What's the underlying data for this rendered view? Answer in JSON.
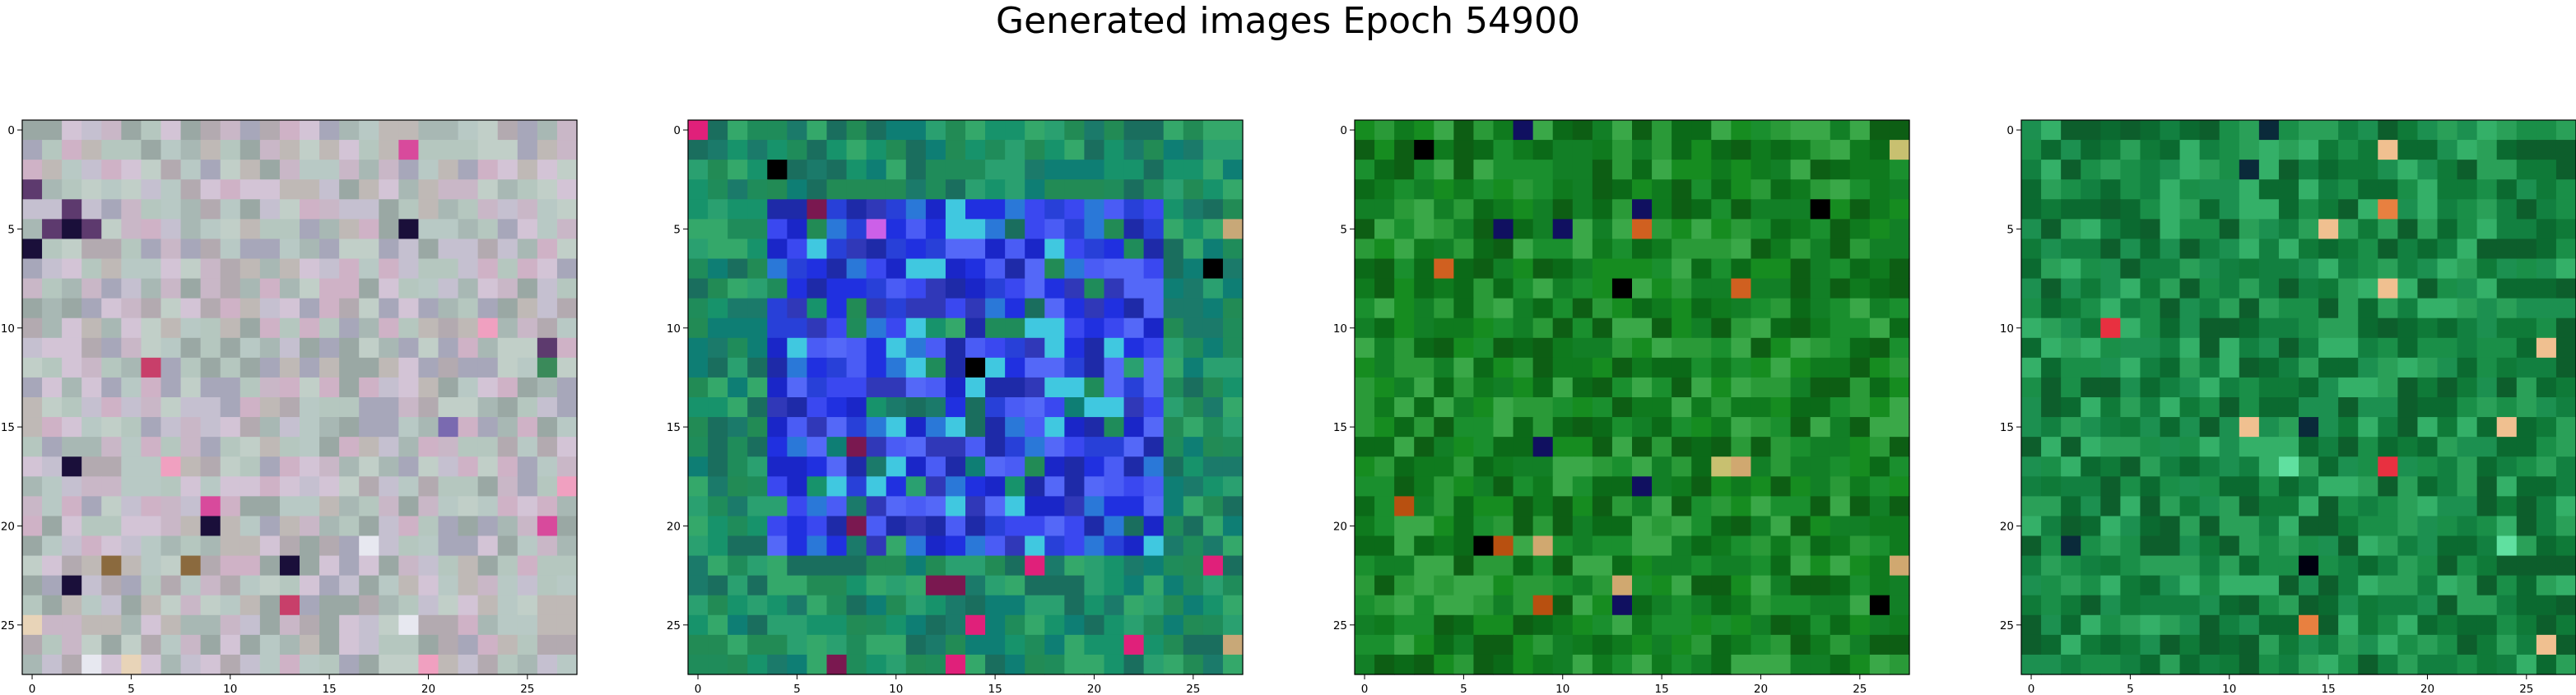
{
  "title": "Generated images Epoch 54900",
  "chart_data": [
    {
      "type": "heatmap",
      "description_colormap": "rgb",
      "grid_size": [
        28,
        28
      ],
      "xlim": [
        -0.5,
        27.5
      ],
      "ylim": [
        27.5,
        -0.5
      ],
      "xticks": [
        0,
        5,
        10,
        15,
        20,
        25
      ],
      "yticks": [
        0,
        5,
        10,
        15,
        20,
        25
      ],
      "palette": [
        "#b5c7bf",
        "#a8b8b4",
        "#c5c0d0",
        "#c9b7c7",
        "#b8c9c5",
        "#a7a7ba",
        "#cfb2c6",
        "#bfb9b6",
        "#9aa8a4",
        "#d3c4d6",
        "#b3aab0",
        "#c1cfc8"
      ],
      "accents": [
        "#1a0f3a",
        "#c83f6a",
        "#e8d4b8",
        "#8b6a3e",
        "#5d3a6e",
        "#d84a9c",
        "#3a8a5a",
        "#f0a0c0",
        "#7a6ab0",
        "#e7e8f0"
      ]
    },
    {
      "type": "heatmap",
      "description_colormap": "rgb",
      "grid_size": [
        28,
        28
      ],
      "xlim": [
        -0.5,
        27.5
      ],
      "ylim": [
        27.5,
        -0.5
      ],
      "xticks": [
        0,
        5,
        10,
        15,
        20,
        25
      ],
      "yticks": [
        0,
        5,
        10,
        15,
        20,
        25
      ],
      "palette": [
        "#1f8c5a",
        "#1b7a6a",
        "#2aa070",
        "#17936b",
        "#228b55",
        "#0e7e74",
        "#34a86a",
        "#1a6e5e"
      ],
      "center_palette": [
        "#2030e0",
        "#3a48f0",
        "#1a26c8",
        "#4a5cf5",
        "#2840d8",
        "#3038b8",
        "#5468f8",
        "#1e2aa8",
        "#2a78d8",
        "#40c8e0"
      ],
      "accents": [
        "#e0207a",
        "#000000",
        "#c8a878",
        "#7a1850",
        "#cc60e8"
      ]
    },
    {
      "type": "heatmap",
      "description_colormap": "rgb",
      "grid_size": [
        28,
        28
      ],
      "xlim": [
        -0.5,
        27.5
      ],
      "ylim": [
        27.5,
        -0.5
      ],
      "xticks": [
        0,
        5,
        10,
        15,
        20,
        25
      ],
      "yticks": [
        0,
        5,
        10,
        15,
        20,
        25
      ],
      "palette": [
        "#0f7a1e",
        "#127f26",
        "#0b6a18",
        "#1a8f2e",
        "#2a9a38",
        "#0d5e14",
        "#168c20",
        "#3aa848"
      ],
      "accents": [
        "#c8c070",
        "#000000",
        "#d0a870",
        "#b85010",
        "#101060",
        "#d06020"
      ]
    },
    {
      "type": "heatmap",
      "description_colormap": "rgb",
      "grid_size": [
        28,
        28
      ],
      "xlim": [
        -0.5,
        27.5
      ],
      "ylim": [
        27.5,
        -0.5
      ],
      "xticks": [
        0,
        5,
        10,
        15,
        20,
        25
      ],
      "yticks": [
        0,
        5,
        10,
        15,
        20,
        25
      ],
      "palette": [
        "#0f7a38",
        "#128040",
        "#0b6a30",
        "#1a8f48",
        "#2aa058",
        "#0d5e2c",
        "#1c9050",
        "#34b068"
      ],
      "accents": [
        "#e83040",
        "#000010",
        "#f0c090",
        "#e88040",
        "#60e0a0",
        "#0a2a3a"
      ]
    }
  ]
}
